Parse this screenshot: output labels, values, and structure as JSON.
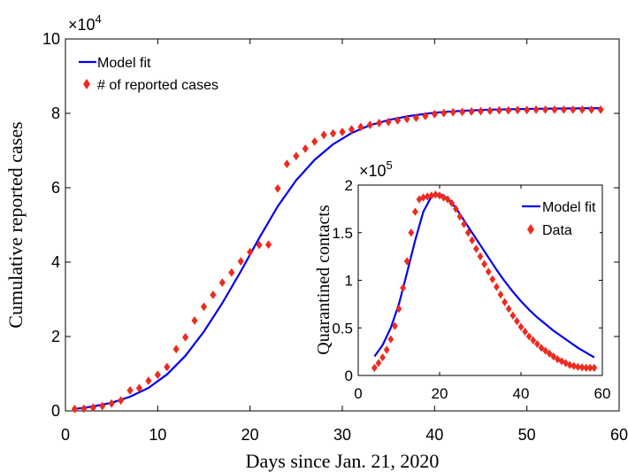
{
  "chart_data": [
    {
      "type": "scatter",
      "xlabel": "Days since Jan. 21, 2020",
      "ylabel": "Cumulative reported cases",
      "xlim": [
        0,
        60
      ],
      "ylim": [
        0,
        100000
      ],
      "xticks": [
        "0",
        "10",
        "20",
        "30",
        "40",
        "50",
        "60"
      ],
      "yticks": [
        "0",
        "2",
        "4",
        "6",
        "8",
        "10"
      ],
      "y_exponent": {
        "base": "×10",
        "power": "4"
      },
      "legend": {
        "placement": "top-left",
        "entries": [
          "Model fit",
          "# of reported cases"
        ]
      },
      "series": [
        {
          "name": "Model fit",
          "style": "line",
          "color": "#0000ee",
          "x": [
            1,
            3,
            5,
            7,
            9,
            11,
            13,
            15,
            17,
            19,
            21,
            23,
            25,
            27,
            29,
            31,
            33,
            35,
            37,
            40,
            43,
            46,
            50,
            54,
            58
          ],
          "y": [
            500,
            1200,
            2200,
            3800,
            6200,
            9800,
            14800,
            21300,
            29000,
            37500,
            46500,
            55000,
            62000,
            67500,
            71700,
            74700,
            76800,
            78200,
            79200,
            80200,
            80700,
            81000,
            81200,
            81300,
            81400
          ]
        },
        {
          "name": "# of reported cases",
          "style": "marker",
          "color": "#ee2a1e",
          "x": [
            1,
            2,
            3,
            4,
            5,
            6,
            7,
            8,
            9,
            10,
            11,
            12,
            13,
            14,
            15,
            16,
            17,
            18,
            19,
            20,
            21,
            22,
            23,
            24,
            25,
            26,
            27,
            28,
            29,
            30,
            31,
            32,
            33,
            34,
            35,
            36,
            37,
            38,
            39,
            40,
            41,
            42,
            43,
            44,
            45,
            46,
            47,
            48,
            49,
            50,
            51,
            52,
            53,
            54,
            55,
            56,
            57,
            58
          ],
          "y": [
            500,
            600,
            900,
            1300,
            2000,
            2800,
            5500,
            6100,
            8100,
            9700,
            11800,
            16600,
            19800,
            24300,
            28000,
            31200,
            34500,
            37200,
            40200,
            42700,
            44600,
            44700,
            59800,
            66400,
            68500,
            70500,
            72400,
            74200,
            74600,
            75000,
            75700,
            76300,
            76900,
            77400,
            77700,
            78100,
            78500,
            78800,
            79300,
            79800,
            80100,
            80300,
            80400,
            80500,
            80600,
            80700,
            80800,
            80800,
            80900,
            80900,
            81000,
            81000,
            81000,
            81000,
            81000,
            81000,
            81000,
            81000
          ]
        }
      ]
    },
    {
      "type": "scatter",
      "xlabel": "",
      "ylabel": "Quarantined contacts",
      "xlim": [
        0,
        60
      ],
      "ylim": [
        0,
        200000
      ],
      "xticks": [
        "0",
        "20",
        "40",
        "60"
      ],
      "yticks": [
        "0",
        "0.5",
        "1",
        "1.5",
        "2"
      ],
      "y_exponent": {
        "base": "×10",
        "power": "5"
      },
      "legend": {
        "placement": "top-right",
        "entries": [
          "Model fit",
          "Data"
        ]
      },
      "series": [
        {
          "name": "Model fit",
          "style": "line",
          "color": "#0000ee",
          "x": [
            4,
            6,
            8,
            10,
            12,
            14,
            16,
            18,
            20,
            22,
            24,
            26,
            28,
            30,
            32,
            34,
            36,
            38,
            40,
            42,
            44,
            46,
            48,
            50,
            52,
            54,
            56,
            58
          ],
          "y": [
            20000,
            32000,
            50000,
            75000,
            108000,
            142000,
            172000,
            188000,
            191000,
            186000,
            176000,
            163000,
            150000,
            137000,
            124000,
            111000,
            99000,
            88000,
            78000,
            69000,
            61000,
            54000,
            47000,
            41000,
            35000,
            29000,
            24000,
            19000
          ]
        },
        {
          "name": "Data",
          "style": "marker",
          "color": "#ee2a1e",
          "x": [
            4,
            5,
            6,
            7,
            8,
            9,
            10,
            11,
            12,
            13,
            14,
            15,
            16,
            17,
            18,
            19,
            20,
            21,
            22,
            23,
            24,
            25,
            26,
            27,
            28,
            29,
            30,
            31,
            32,
            33,
            34,
            35,
            36,
            37,
            38,
            39,
            40,
            41,
            42,
            43,
            44,
            45,
            46,
            47,
            48,
            49,
            50,
            51,
            52,
            53,
            54,
            55,
            56,
            57,
            58
          ],
          "y": [
            8000,
            13000,
            19000,
            27000,
            38000,
            52000,
            70000,
            92000,
            120000,
            150000,
            172000,
            185000,
            187000,
            188000,
            189000,
            190000,
            189000,
            187000,
            185000,
            181000,
            175000,
            167000,
            159000,
            150000,
            142000,
            133000,
            125000,
            117000,
            109000,
            101000,
            93000,
            85000,
            77000,
            70000,
            63000,
            57000,
            51000,
            46000,
            41000,
            37000,
            33000,
            29000,
            26000,
            23000,
            20000,
            17000,
            15000,
            13000,
            11000,
            10000,
            9000,
            8500,
            8000,
            8000,
            8000
          ]
        }
      ]
    }
  ]
}
